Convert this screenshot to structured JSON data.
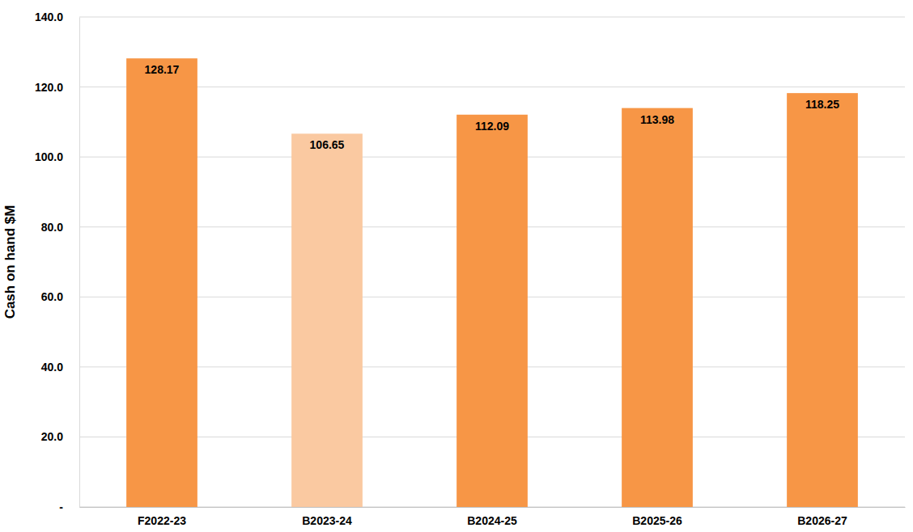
{
  "chart_data": {
    "type": "bar",
    "y_label": "Cash on hand $M",
    "categories": [
      "F2022-23",
      "B2023-24",
      "B2024-25",
      "B2025-26",
      "B2026-27"
    ],
    "values": [
      128.17,
      106.65,
      112.09,
      113.98,
      118.25
    ],
    "colors": [
      "#f79646",
      "#fac9a1",
      "#f79646",
      "#f79646",
      "#f79646"
    ],
    "ylim": [
      0,
      140
    ],
    "yticks": [
      {
        "value": 0,
        "label": "-"
      },
      {
        "value": 20,
        "label": "20.0"
      },
      {
        "value": 40,
        "label": "40.0"
      },
      {
        "value": 60,
        "label": "60.0"
      },
      {
        "value": 80,
        "label": "80.0"
      },
      {
        "value": 100,
        "label": "100.0"
      },
      {
        "value": 120,
        "label": "120.0"
      },
      {
        "value": 140,
        "label": "140.0"
      }
    ],
    "grid": true,
    "data_labels": true
  }
}
